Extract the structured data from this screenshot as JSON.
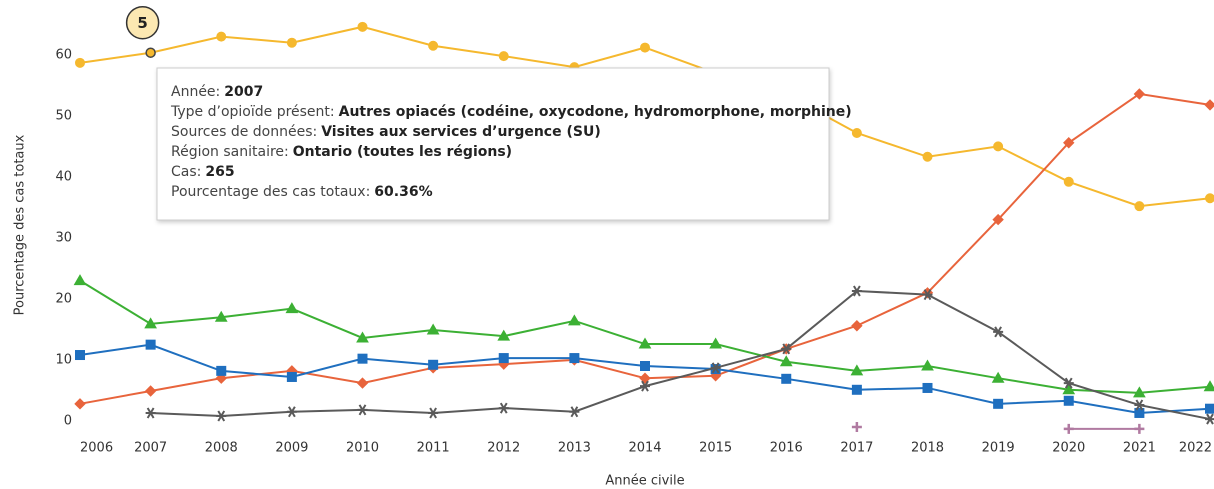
{
  "chart_data": {
    "type": "line",
    "y_label": "Pourcentage des cas totaux",
    "x_label": "Année civile",
    "x": [
      2006,
      2007,
      2008,
      2009,
      2010,
      2011,
      2012,
      2013,
      2014,
      2015,
      2016,
      2017,
      2018,
      2019,
      2020,
      2021,
      2022
    ],
    "xlim": [
      2006,
      2022
    ],
    "xticks": [
      2006,
      2007,
      2008,
      2009,
      2010,
      2011,
      2012,
      2013,
      2014,
      2015,
      2016,
      2017,
      2018,
      2019,
      2020,
      2021,
      2022
    ],
    "ylim": [
      -3,
      69
    ],
    "yticks": [
      0,
      10,
      20,
      30,
      40,
      50,
      60
    ],
    "series": [
      {
        "color": "#f5b82e",
        "marker": "circle",
        "values": [
          58.7,
          60.36,
          63,
          62,
          64.6,
          61.5,
          59.8,
          58,
          61.2,
          57,
          53.5,
          47.2,
          43.3,
          45,
          39.2,
          35.2,
          36.5
        ]
      },
      {
        "color": "#e8643c",
        "marker": "diamond",
        "values": [
          2.8,
          4.9,
          7,
          8.2,
          6.2,
          8.7,
          9.3,
          10,
          7,
          7.4,
          11.8,
          15.6,
          21,
          33,
          45.6,
          53.6,
          51.8
        ]
      },
      {
        "color": "#3cb034",
        "marker": "triangle",
        "values": [
          23,
          15.9,
          17,
          18.4,
          13.6,
          14.9,
          13.9,
          16.4,
          12.6,
          12.6,
          9.7,
          8.2,
          9,
          7,
          5.1,
          4.6,
          5.6
        ]
      },
      {
        "color": "#1f6fbf",
        "marker": "square",
        "values": [
          10.8,
          12.5,
          8.2,
          7.2,
          10.2,
          9.2,
          10.3,
          10.3,
          9,
          8.5,
          6.9,
          5.1,
          5.4,
          2.8,
          3.3,
          1.3,
          2
        ]
      },
      {
        "color": "#5a5a5a",
        "marker": "asterisk",
        "values": [
          null,
          1.3,
          0.8,
          1.5,
          1.8,
          1.3,
          2.1,
          1.5,
          5.7,
          8.7,
          11.8,
          21.3,
          20.7,
          14.6,
          6.2,
          2.6,
          0.3
        ]
      },
      {
        "color": "#b07aa1",
        "marker": "plus",
        "values": [
          null,
          null,
          null,
          null,
          null,
          null,
          null,
          null,
          null,
          null,
          null,
          -1,
          null,
          null,
          -1.3,
          -1.3,
          null
        ]
      }
    ],
    "annotation": {
      "label": "5",
      "series": 0,
      "index": 1
    },
    "tooltip": [
      {
        "label": "Année:",
        "value": "2007"
      },
      {
        "label": "Type d’opioïde présent:",
        "value": "Autres opiacés (codéine, oxycodone, hydromorphone, morphine)"
      },
      {
        "label": "Sources de données:",
        "value": "Visites aux services d’urgence (SU)"
      },
      {
        "label": "Région sanitaire:",
        "value": "Ontario (toutes les régions)"
      },
      {
        "label": "Cas:",
        "value": "265"
      },
      {
        "label": "Pourcentage des cas totaux:",
        "value": "60.36%"
      }
    ]
  }
}
